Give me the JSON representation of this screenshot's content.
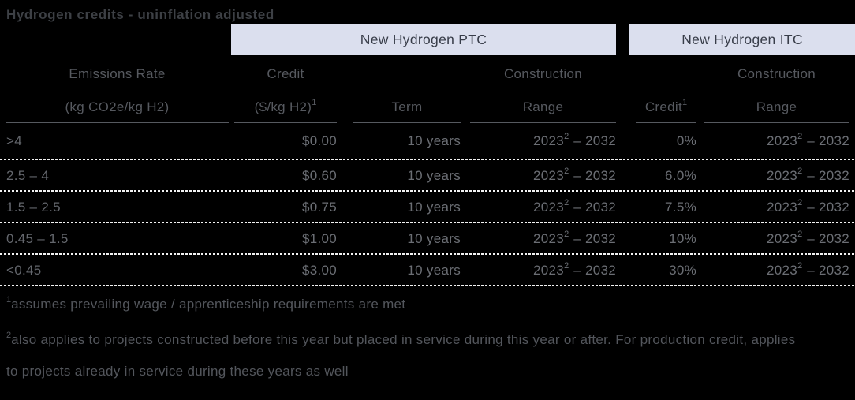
{
  "title": "Hydrogen credits - uninflation adjusted",
  "bands": {
    "ptc": "New Hydrogen PTC",
    "itc": "New Hydrogen ITC"
  },
  "headers": {
    "emissions": {
      "line1": "Emissions Rate",
      "line2": "(kg CO2e/kg H2)"
    },
    "ptc_credit": {
      "line1": "Credit",
      "line2": "($/kg H2)",
      "sup": "1"
    },
    "term": {
      "line1": "Term"
    },
    "ptc_construction": {
      "line1": "Construction",
      "line2": "Range"
    },
    "itc_credit": {
      "line1": "Credit",
      "sup": "1"
    },
    "itc_construction": {
      "line1": "Construction",
      "line2": "Range"
    }
  },
  "rows": [
    {
      "emissions": ">4",
      "credit": "$0.00",
      "term": "10 years",
      "ptc_range": {
        "year": "2023",
        "sup": "2",
        "rest": "– 2032"
      },
      "itc_credit": "0%",
      "itc_range": {
        "year": "2023",
        "sup": "2",
        "rest": "– 2032"
      }
    },
    {
      "emissions": "2.5 – 4",
      "credit": "$0.60",
      "term": "10 years",
      "ptc_range": {
        "year": "2023",
        "sup": "2",
        "rest": "– 2032"
      },
      "itc_credit": "6.0%",
      "itc_range": {
        "year": "2023",
        "sup": "2",
        "rest": "– 2032"
      }
    },
    {
      "emissions": "1.5 – 2.5",
      "credit": "$0.75",
      "term": "10 years",
      "ptc_range": {
        "year": "2023",
        "sup": "2",
        "rest": "– 2032"
      },
      "itc_credit": "7.5%",
      "itc_range": {
        "year": "2023",
        "sup": "2",
        "rest": "– 2032"
      }
    },
    {
      "emissions": "0.45 – 1.5",
      "credit": "$1.00",
      "term": "10 years",
      "ptc_range": {
        "year": "2023",
        "sup": "2",
        "rest": "– 2032"
      },
      "itc_credit": "10%",
      "itc_range": {
        "year": "2023",
        "sup": "2",
        "rest": "– 2032"
      }
    },
    {
      "emissions": "<0.45",
      "credit": "$3.00",
      "term": "10 years",
      "ptc_range": {
        "year": "2023",
        "sup": "2",
        "rest": "– 2032"
      },
      "itc_credit": "30%",
      "itc_range": {
        "year": "2023",
        "sup": "2",
        "rest": "– 2032"
      }
    }
  ],
  "footnotes": {
    "f1": {
      "sup": "1",
      "text": "assumes prevailing wage / apprenticeship requirements are met"
    },
    "f2": {
      "sup": "2",
      "text": "also applies to projects constructed before this year but placed in service during this year or after. For production credit, applies to projects already in service during these years as well"
    }
  },
  "colors": {
    "background": "#000000",
    "band_background": "#dbdfee",
    "band_text": "#383d49",
    "header_text": "#56595f",
    "data_text": "#6b6e74",
    "row_separator": "#f2f2f2",
    "title_text": "#3d4045"
  }
}
